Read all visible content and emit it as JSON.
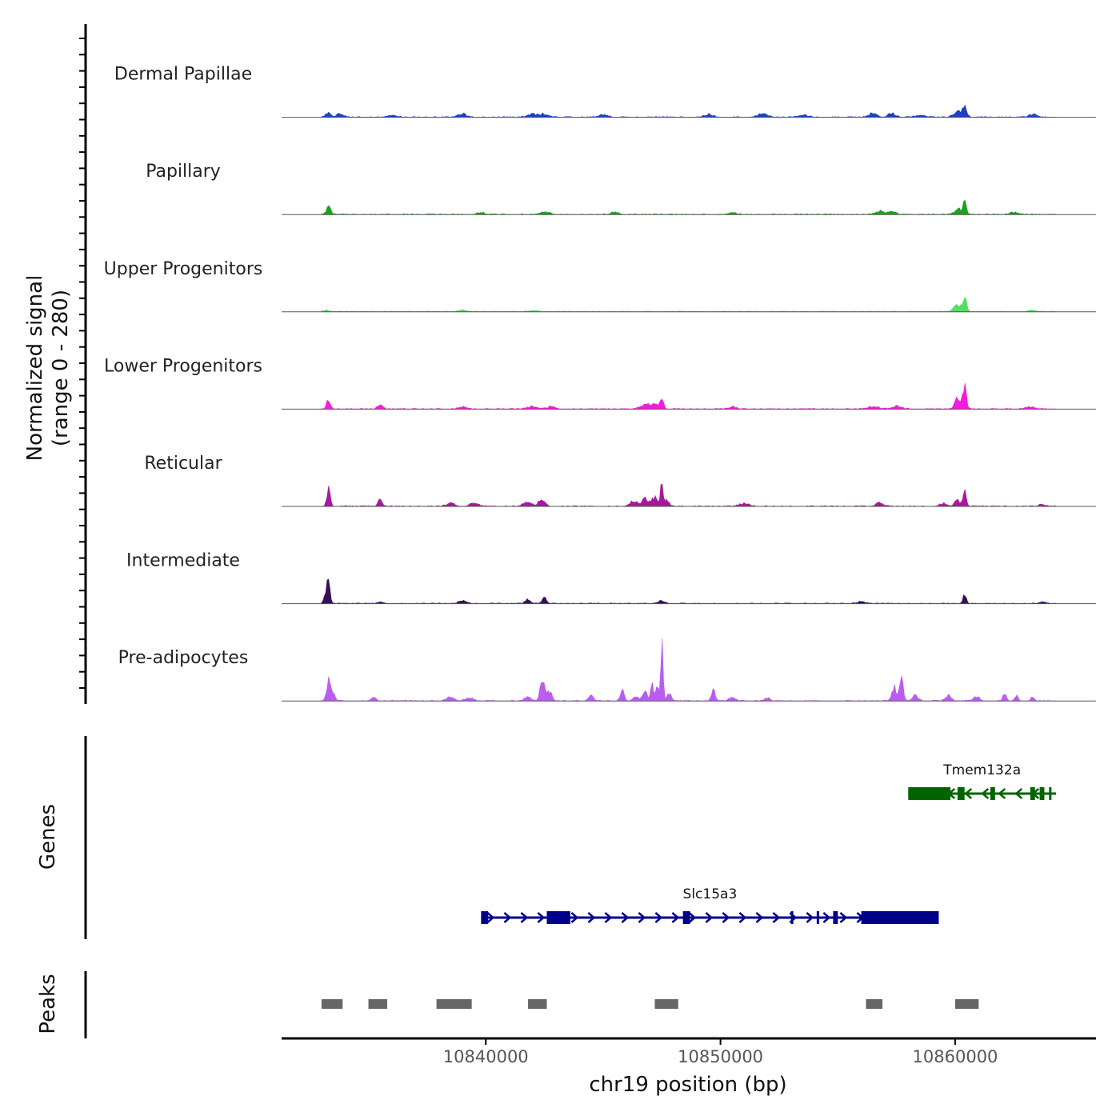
{
  "chart_data": {
    "type": "area",
    "title": "",
    "chromosome": "chr19",
    "xlabel": "chr19 position (bp)",
    "x_range": [
      10831300,
      10866000
    ],
    "x_ticks": [
      10840000,
      10850000,
      10860000
    ],
    "x_tick_labels": [
      "10840000",
      "10850000",
      "10860000"
    ],
    "coverage_ylabel_line1": "Normalized signal",
    "coverage_ylabel_line2": "(range 0 - 280)",
    "y_range": [
      0,
      280
    ],
    "tracks": [
      {
        "name": "Dermal Papillae",
        "color": "#1f3fc4",
        "peaks": [
          [
            10833300,
            0.07,
            110
          ],
          [
            10833800,
            0.05,
            140
          ],
          [
            10836000,
            0.03,
            200
          ],
          [
            10839000,
            0.05,
            160
          ],
          [
            10842000,
            0.04,
            200
          ],
          [
            10842500,
            0.05,
            160
          ],
          [
            10845000,
            0.03,
            200
          ],
          [
            10849500,
            0.04,
            180
          ],
          [
            10851800,
            0.05,
            200
          ],
          [
            10853500,
            0.03,
            200
          ],
          [
            10856500,
            0.06,
            160
          ],
          [
            10857300,
            0.06,
            140
          ],
          [
            10858500,
            0.03,
            200
          ],
          [
            10860400,
            0.14,
            90
          ],
          [
            10860100,
            0.08,
            160
          ],
          [
            10863300,
            0.04,
            140
          ]
        ]
      },
      {
        "name": "Papillary",
        "color": "#1ea11e",
        "peaks": [
          [
            10833300,
            0.11,
            90
          ],
          [
            10839800,
            0.03,
            140
          ],
          [
            10842500,
            0.04,
            200
          ],
          [
            10845500,
            0.03,
            160
          ],
          [
            10850500,
            0.03,
            160
          ],
          [
            10856800,
            0.05,
            200
          ],
          [
            10857300,
            0.05,
            140
          ],
          [
            10860400,
            0.22,
            70
          ],
          [
            10860100,
            0.09,
            120
          ],
          [
            10862500,
            0.03,
            160
          ]
        ]
      },
      {
        "name": "Upper Progenitors",
        "color": "#55dd65",
        "peaks": [
          [
            10833200,
            0.02,
            140
          ],
          [
            10839000,
            0.02,
            160
          ],
          [
            10842000,
            0.02,
            180
          ],
          [
            10860400,
            0.24,
            80
          ],
          [
            10860100,
            0.12,
            130
          ],
          [
            10863300,
            0.02,
            160
          ]
        ]
      },
      {
        "name": "Lower Progenitors",
        "color": "#f21cdc",
        "peaks": [
          [
            10833300,
            0.13,
            80
          ],
          [
            10835500,
            0.08,
            100
          ],
          [
            10839000,
            0.03,
            160
          ],
          [
            10842000,
            0.04,
            200
          ],
          [
            10842800,
            0.04,
            160
          ],
          [
            10846800,
            0.07,
            200
          ],
          [
            10847200,
            0.08,
            140
          ],
          [
            10847500,
            0.18,
            70
          ],
          [
            10850500,
            0.03,
            160
          ],
          [
            10856500,
            0.04,
            200
          ],
          [
            10857500,
            0.04,
            200
          ],
          [
            10860400,
            0.32,
            80
          ],
          [
            10860100,
            0.16,
            110
          ],
          [
            10863200,
            0.03,
            160
          ]
        ]
      },
      {
        "name": "Reticular",
        "color": "#a8189f",
        "peaks": [
          [
            10833300,
            0.24,
            70
          ],
          [
            10835500,
            0.09,
            90
          ],
          [
            10838500,
            0.05,
            160
          ],
          [
            10839500,
            0.05,
            160
          ],
          [
            10841800,
            0.08,
            160
          ],
          [
            10842400,
            0.12,
            130
          ],
          [
            10846300,
            0.08,
            160
          ],
          [
            10846800,
            0.11,
            140
          ],
          [
            10847200,
            0.13,
            110
          ],
          [
            10847500,
            0.36,
            60
          ],
          [
            10847700,
            0.09,
            100
          ],
          [
            10851000,
            0.04,
            200
          ],
          [
            10856800,
            0.05,
            160
          ],
          [
            10859500,
            0.04,
            160
          ],
          [
            10860400,
            0.23,
            70
          ],
          [
            10860100,
            0.09,
            110
          ],
          [
            10863700,
            0.03,
            120
          ]
        ]
      },
      {
        "name": "Intermediate",
        "color": "#361055",
        "peaks": [
          [
            10833300,
            0.33,
            60
          ],
          [
            10833200,
            0.12,
            100
          ],
          [
            10835500,
            0.03,
            120
          ],
          [
            10839000,
            0.04,
            160
          ],
          [
            10841800,
            0.06,
            110
          ],
          [
            10842500,
            0.08,
            90
          ],
          [
            10847500,
            0.04,
            120
          ],
          [
            10856000,
            0.03,
            160
          ],
          [
            10860400,
            0.12,
            70
          ],
          [
            10863700,
            0.03,
            120
          ]
        ]
      },
      {
        "name": "Pre-adipocytes",
        "color": "#bb5cf0",
        "peaks": [
          [
            10833300,
            0.3,
            80
          ],
          [
            10833500,
            0.1,
            90
          ],
          [
            10835200,
            0.05,
            100
          ],
          [
            10838500,
            0.06,
            150
          ],
          [
            10839300,
            0.05,
            150
          ],
          [
            10841800,
            0.07,
            130
          ],
          [
            10842400,
            0.32,
            90
          ],
          [
            10842700,
            0.15,
            100
          ],
          [
            10844500,
            0.07,
            100
          ],
          [
            10845800,
            0.16,
            80
          ],
          [
            10846400,
            0.07,
            120
          ],
          [
            10846800,
            0.12,
            100
          ],
          [
            10847100,
            0.22,
            70
          ],
          [
            10847300,
            0.24,
            60
          ],
          [
            10847500,
            0.98,
            50
          ],
          [
            10847800,
            0.14,
            90
          ],
          [
            10849700,
            0.15,
            80
          ],
          [
            10850500,
            0.06,
            120
          ],
          [
            10852000,
            0.05,
            100
          ],
          [
            10857400,
            0.2,
            90
          ],
          [
            10857700,
            0.32,
            90
          ],
          [
            10858300,
            0.08,
            120
          ],
          [
            10859700,
            0.08,
            120
          ],
          [
            10860900,
            0.07,
            120
          ],
          [
            10862100,
            0.1,
            70
          ],
          [
            10862600,
            0.08,
            70
          ],
          [
            10863300,
            0.06,
            70
          ]
        ]
      }
    ],
    "genes": [
      {
        "name": "Slc15a3",
        "strand": "+",
        "color": "#00008b",
        "start": 10839800,
        "end": 10859300,
        "exons": [
          [
            10839800,
            10840100
          ],
          [
            10842600,
            10843600
          ],
          [
            10848400,
            10848700
          ],
          [
            10853000,
            10853100
          ],
          [
            10854100,
            10854200
          ],
          [
            10854800,
            10855000
          ],
          [
            10856000,
            10859300
          ]
        ]
      },
      {
        "name": "Tmem132a",
        "strand": "-",
        "color": "#006400",
        "start": 10858000,
        "end": 10864300,
        "exons": [
          [
            10858000,
            10859800
          ],
          [
            10860100,
            10860400
          ],
          [
            10861500,
            10861700
          ],
          [
            10863200,
            10863400
          ],
          [
            10863600,
            10863800
          ],
          [
            10864000,
            10864100
          ]
        ]
      }
    ],
    "genes_ylabel": "Genes",
    "peaks_ylabel": "Peaks",
    "peak_regions": [
      [
        10833000,
        10833900
      ],
      [
        10835000,
        10835800
      ],
      [
        10837900,
        10839400
      ],
      [
        10841800,
        10842600
      ],
      [
        10847200,
        10848200
      ],
      [
        10856200,
        10856900
      ],
      [
        10860000,
        10861000
      ]
    ]
  }
}
